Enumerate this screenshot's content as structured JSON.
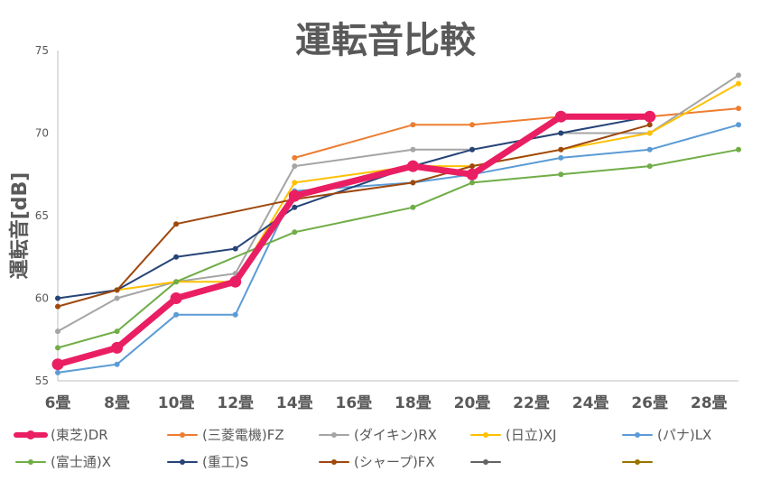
{
  "chart_data": {
    "type": "line",
    "title": "運転音比較",
    "ylabel": "運転音[dB]",
    "xlabel": "",
    "ylim": [
      55,
      75
    ],
    "yticks": [
      55,
      60,
      65,
      70,
      75
    ],
    "x_categories": [
      "6畳",
      "8畳",
      "10畳",
      "12畳",
      "14畳",
      "16畳",
      "18畳",
      "20畳",
      "22畳",
      "24畳",
      "26畳",
      "28畳"
    ],
    "x_tick_positions": [
      6,
      8,
      10,
      12,
      14,
      16,
      18,
      20,
      22,
      24,
      26,
      28
    ],
    "xlim": [
      6,
      29
    ],
    "grid": false,
    "legend_position": "bottom",
    "series": [
      {
        "name": "(東芝)DR",
        "color": "#EA1E63",
        "highlight": true,
        "points": [
          [
            6,
            56.0
          ],
          [
            8,
            57.0
          ],
          [
            10,
            60.0
          ],
          [
            12,
            61.0
          ],
          [
            14,
            66.2
          ],
          [
            18,
            68.0
          ],
          [
            20,
            67.5
          ],
          [
            23,
            71.0
          ],
          [
            26,
            71.0
          ]
        ]
      },
      {
        "name": "(三菱電機)FZ",
        "color": "#ED7D31",
        "points": [
          [
            14,
            68.5
          ],
          [
            18,
            70.5
          ],
          [
            20,
            70.5
          ],
          [
            23,
            71.0
          ],
          [
            26,
            71.0
          ],
          [
            29,
            71.5
          ]
        ]
      },
      {
        "name": "(ダイキン)RX",
        "color": "#A5A5A5",
        "points": [
          [
            6,
            58.0
          ],
          [
            8,
            60.0
          ],
          [
            10,
            61.0
          ],
          [
            12,
            61.5
          ],
          [
            14,
            68.0
          ],
          [
            18,
            69.0
          ],
          [
            20,
            69.0
          ],
          [
            23,
            70.0
          ],
          [
            26,
            70.0
          ],
          [
            29,
            73.5
          ]
        ]
      },
      {
        "name": "(日立)XJ",
        "color": "#FFC000",
        "points": [
          [
            8,
            60.5
          ],
          [
            10,
            61.0
          ],
          [
            12,
            61.0
          ],
          [
            14,
            67.0
          ],
          [
            18,
            68.0
          ],
          [
            20,
            68.0
          ],
          [
            23,
            69.0
          ],
          [
            26,
            70.0
          ],
          [
            29,
            73.0
          ]
        ]
      },
      {
        "name": "(パナ)LX",
        "color": "#5B9BD5",
        "points": [
          [
            6,
            55.5
          ],
          [
            8,
            56.0
          ],
          [
            10,
            59.0
          ],
          [
            12,
            59.0
          ],
          [
            14,
            66.5
          ],
          [
            18,
            67.0
          ],
          [
            20,
            67.5
          ],
          [
            23,
            68.5
          ],
          [
            26,
            69.0
          ],
          [
            29,
            70.5
          ]
        ]
      },
      {
        "name": "(富士通)X",
        "color": "#70AD47",
        "points": [
          [
            6,
            57.0
          ],
          [
            8,
            58.0
          ],
          [
            10,
            61.0
          ],
          [
            14,
            64.0
          ],
          [
            18,
            65.5
          ],
          [
            20,
            67.0
          ],
          [
            23,
            67.5
          ],
          [
            26,
            68.0
          ],
          [
            29,
            69.0
          ]
        ]
      },
      {
        "name": "(重工)S",
        "color": "#264478",
        "points": [
          [
            6,
            60.0
          ],
          [
            8,
            60.5
          ],
          [
            10,
            62.5
          ],
          [
            12,
            63.0
          ],
          [
            14,
            65.5
          ],
          [
            18,
            68.0
          ],
          [
            20,
            69.0
          ],
          [
            23,
            70.0
          ],
          [
            26,
            71.0
          ]
        ]
      },
      {
        "name": "(シャープ)FX",
        "color": "#9E480E",
        "points": [
          [
            6,
            59.5
          ],
          [
            8,
            60.5
          ],
          [
            10,
            64.5
          ],
          [
            14,
            66.0
          ],
          [
            18,
            67.0
          ],
          [
            20,
            68.0
          ],
          [
            23,
            69.0
          ],
          [
            26,
            70.5
          ]
        ]
      },
      {
        "name": "",
        "color": "#636363",
        "points": []
      },
      {
        "name": "",
        "color": "#997300",
        "points": []
      }
    ]
  }
}
